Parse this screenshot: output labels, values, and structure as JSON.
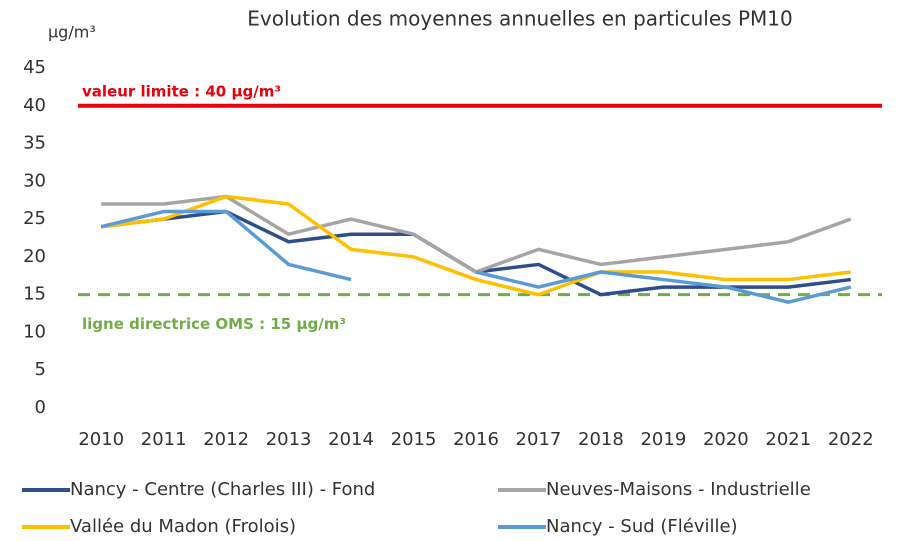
{
  "chart_data": {
    "type": "line",
    "title": "Evolution des moyennes annuelles en particules PM10",
    "y_axis_label": "µg/m³",
    "categories": [
      "2010",
      "2011",
      "2012",
      "2013",
      "2014",
      "2015",
      "2016",
      "2017",
      "2018",
      "2019",
      "2020",
      "2021",
      "2022"
    ],
    "series": [
      {
        "name": "Nancy  - Centre (Charles III) - Fond",
        "color": "#2e4d8c",
        "values": [
          24,
          25,
          26,
          22,
          23,
          23,
          18,
          19,
          15,
          16,
          16,
          16,
          17
        ]
      },
      {
        "name": "Neuves-Maisons - Industrielle",
        "color": "#a5a5a5",
        "values": [
          27,
          27,
          28,
          23,
          25,
          23,
          18,
          21,
          19,
          20,
          21,
          22,
          25
        ]
      },
      {
        "name": "Vallée du Madon (Frolois)",
        "color": "#ffc000",
        "values": [
          24,
          25,
          28,
          27,
          21,
          20,
          17,
          15,
          18,
          18,
          17,
          17,
          18
        ]
      },
      {
        "name": "Nancy - Sud (Fléville)",
        "color": "#5b9bd5",
        "values": [
          24,
          26,
          26,
          19,
          17,
          null,
          18,
          16,
          18,
          17,
          16,
          14,
          16
        ]
      }
    ],
    "reference_lines": [
      {
        "value": 40,
        "label": "valeur limite : 40 µg/m³",
        "color": "#e8000b",
        "style": "solid"
      },
      {
        "value": 15,
        "label": "ligne directrice OMS : 15 µg/m³",
        "color": "#70ad47",
        "style": "dashed"
      }
    ],
    "ylim": [
      0,
      45
    ],
    "yticks": [
      0,
      5,
      10,
      15,
      20,
      25,
      30,
      35,
      40,
      45
    ],
    "grid": false
  }
}
